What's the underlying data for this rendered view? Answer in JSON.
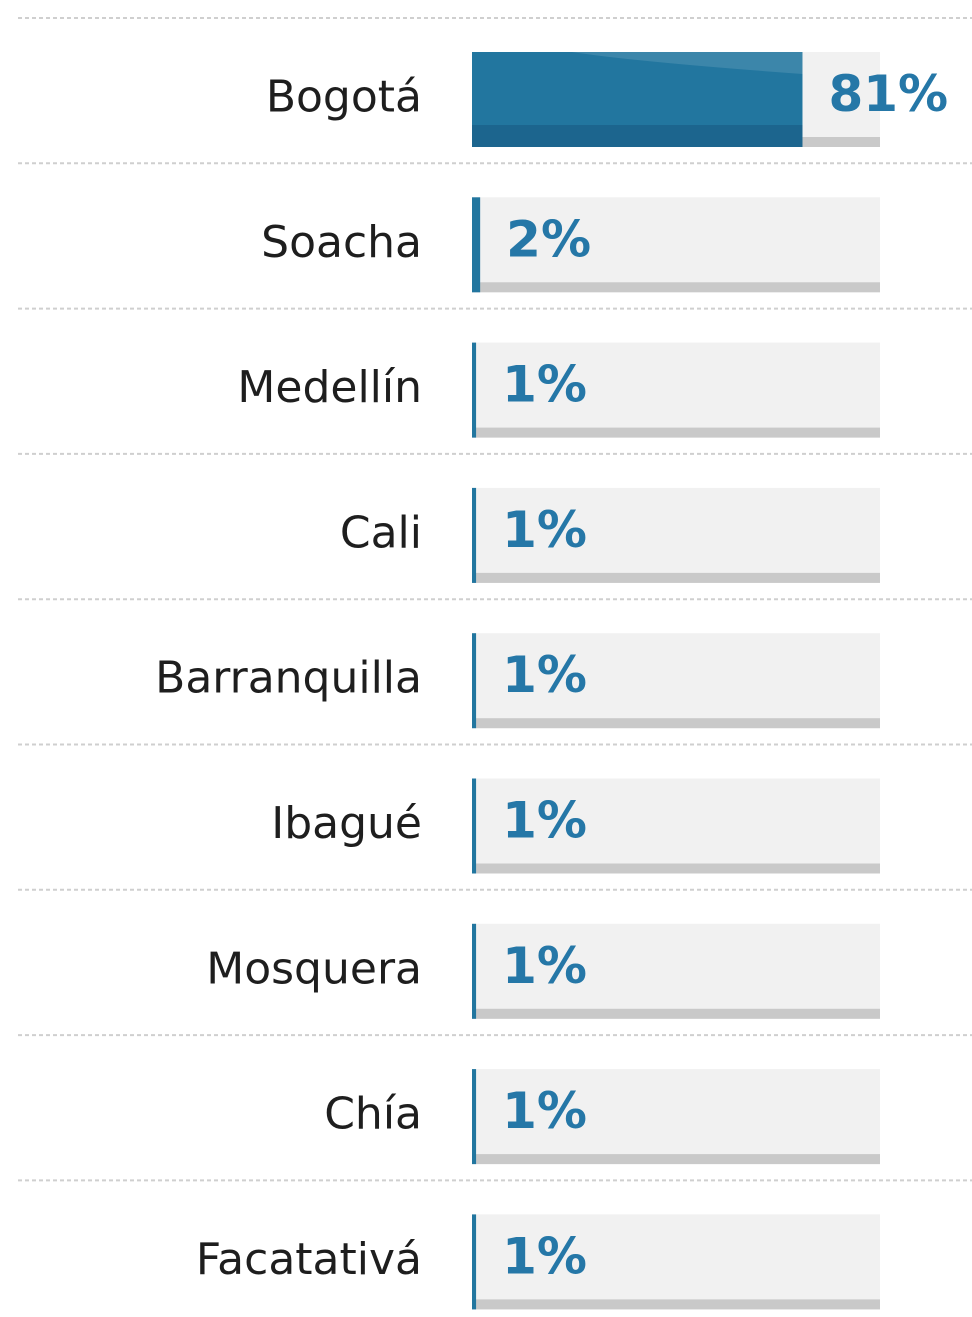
{
  "chart_data": {
    "type": "bar",
    "categories": [
      "Bogotá",
      "Soacha",
      "Medellín",
      "Cali",
      "Barranquilla",
      "Ibagué",
      "Mosquera",
      "Chía",
      "Facatativá"
    ],
    "values": [
      81,
      2,
      1,
      1,
      1,
      1,
      1,
      1,
      1
    ],
    "value_labels": [
      "81%",
      "2%",
      "1%",
      "1%",
      "1%",
      "1%",
      "1%",
      "1%",
      "1%"
    ],
    "color": "#22769f",
    "xlim": [
      0,
      100
    ]
  }
}
